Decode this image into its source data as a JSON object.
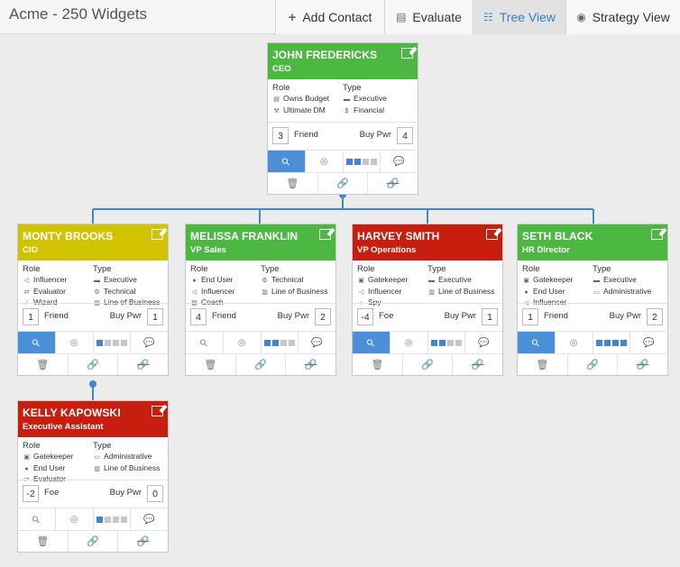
{
  "app": {
    "title": "Acme - 250 Widgets"
  },
  "nav": [
    {
      "label": "Add Contact",
      "icon": "plus-icon",
      "active": false
    },
    {
      "label": "Evaluate",
      "icon": "list-icon",
      "active": false
    },
    {
      "label": "Tree View",
      "icon": "sitemap-icon",
      "active": true
    },
    {
      "label": "Strategy View",
      "icon": "map-marker-icon",
      "active": false
    }
  ],
  "labels": {
    "role": "Role",
    "type": "Type",
    "buy_pwr": "Buy Pwr"
  },
  "colors": {
    "connector": "#3d86d8",
    "green": "#4cb842",
    "yellow": "#d2c300",
    "red": "#c71e10",
    "active": "#4a8fd8"
  },
  "cards": [
    {
      "name": "JOHN FREDERICKS",
      "title": "CEO",
      "color": "green",
      "roles": [
        {
          "icon": "money-icon",
          "label": "Owns Budget"
        },
        {
          "icon": "gavel-icon",
          "label": "Ultimate DM"
        }
      ],
      "types": [
        {
          "icon": "briefcase-icon",
          "label": "Executive"
        },
        {
          "icon": "dollar-icon",
          "label": "Financial"
        }
      ],
      "relationship_score": "3",
      "relationship": "Friend",
      "buying_power": "4",
      "key_active": true,
      "dots_filled": 2,
      "comment_dark": true
    },
    {
      "name": "MONTY BROOKS",
      "title": "CIO",
      "color": "yellow",
      "roles": [
        {
          "icon": "bullhorn-icon",
          "label": "Influencer"
        },
        {
          "icon": "exchange-icon",
          "label": "Evaluator"
        },
        {
          "icon": "wand-icon",
          "label": "Wizard"
        }
      ],
      "types": [
        {
          "icon": "briefcase-icon",
          "label": "Executive"
        },
        {
          "icon": "cog-icon",
          "label": "Technical"
        },
        {
          "icon": "building-icon",
          "label": "Line of Business"
        }
      ],
      "relationship_score": "1",
      "relationship": "Friend",
      "buying_power": "1",
      "key_active": true,
      "dots_filled": 1,
      "comment_dark": false
    },
    {
      "name": "MELISSA FRANKLIN",
      "title": "VP Sales",
      "color": "green",
      "roles": [
        {
          "icon": "user-icon",
          "label": "End User"
        },
        {
          "icon": "bullhorn-icon",
          "label": "Influencer"
        },
        {
          "icon": "coach-icon",
          "label": "Coach"
        }
      ],
      "types": [
        {
          "icon": "cog-icon",
          "label": "Technical"
        },
        {
          "icon": "building-icon",
          "label": "Line of Business"
        }
      ],
      "relationship_score": "4",
      "relationship": "Friend",
      "buying_power": "2",
      "key_active": false,
      "dots_filled": 2,
      "comment_dark": false
    },
    {
      "name": "HARVEY SMITH",
      "title": "VP Operations",
      "color": "red",
      "roles": [
        {
          "icon": "lock-icon",
          "label": "Gatekeeper"
        },
        {
          "icon": "bullhorn-icon",
          "label": "Influencer"
        },
        {
          "icon": "spy-icon",
          "label": "Spy"
        }
      ],
      "types": [
        {
          "icon": "briefcase-icon",
          "label": "Executive"
        },
        {
          "icon": "building-icon",
          "label": "Line of Business"
        }
      ],
      "relationship_score": "-4",
      "relationship": "Foe",
      "buying_power": "1",
      "key_active": true,
      "dots_filled": 2,
      "comment_dark": false
    },
    {
      "name": "SETH BLACK",
      "title": "HR Director",
      "color": "green",
      "roles": [
        {
          "icon": "lock-icon",
          "label": "Gatekeeper"
        },
        {
          "icon": "user-icon",
          "label": "End User"
        },
        {
          "icon": "bullhorn-icon",
          "label": "Influencer"
        }
      ],
      "types": [
        {
          "icon": "briefcase-icon",
          "label": "Executive"
        },
        {
          "icon": "folder-icon",
          "label": "Administrative"
        }
      ],
      "relationship_score": "1",
      "relationship": "Friend",
      "buying_power": "2",
      "key_active": true,
      "dots_filled": 4,
      "comment_dark": false
    },
    {
      "name": "KELLY KAPOWSKI",
      "title": "Executive Assistant",
      "color": "red",
      "roles": [
        {
          "icon": "lock-icon",
          "label": "Gatekeeper"
        },
        {
          "icon": "user-icon",
          "label": "End User"
        },
        {
          "icon": "exchange-icon",
          "label": "Evaluator"
        }
      ],
      "types": [
        {
          "icon": "folder-icon",
          "label": "Administrative"
        },
        {
          "icon": "building-icon",
          "label": "Line of Business"
        }
      ],
      "relationship_score": "-2",
      "relationship": "Foe",
      "buying_power": "0",
      "key_active": false,
      "dots_filled": 1,
      "comment_dark": false
    }
  ]
}
